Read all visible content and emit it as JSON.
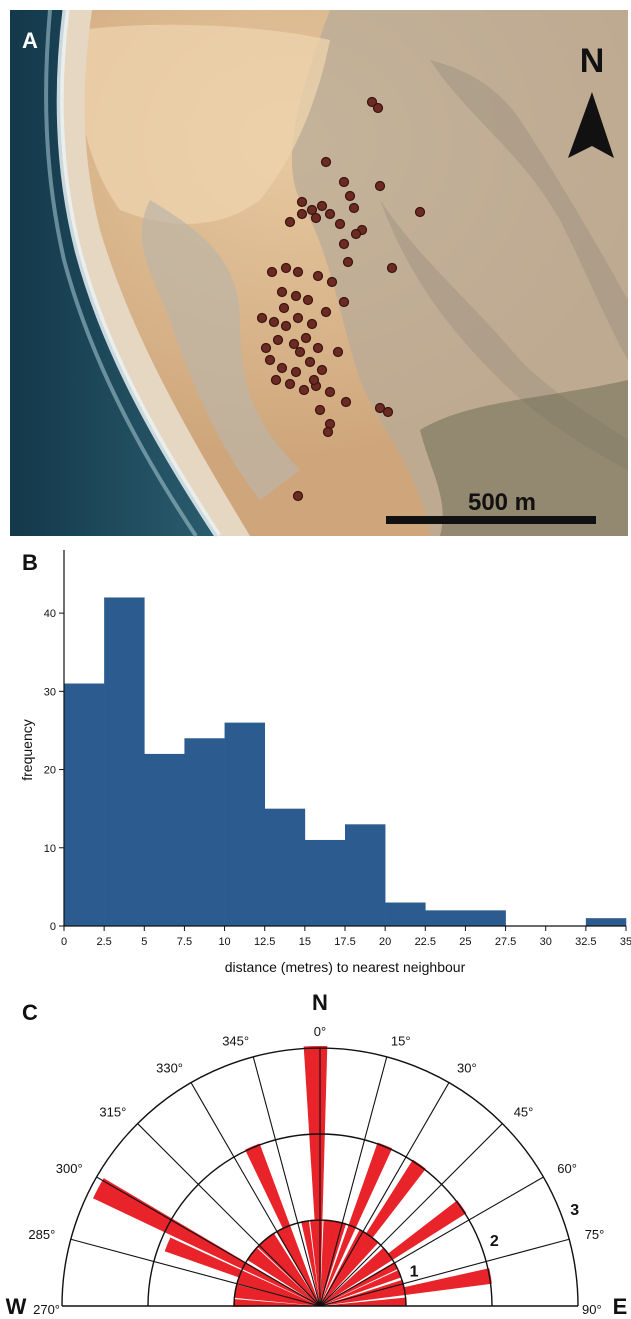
{
  "panels": {
    "a": {
      "letter": "A",
      "north_label": "N",
      "scale_label": "500 m"
    },
    "b": {
      "letter": "B"
    },
    "c": {
      "letter": "C"
    }
  },
  "colors": {
    "ocean": "#1d4a5f",
    "sand": "#d8b48a",
    "bar_blue": "#2b5b8f",
    "rose_red": "#e8232a",
    "marker": "#6b2a22"
  },
  "icons": {
    "north_arrow": "north-arrow-icon"
  },
  "chart_data": [
    {
      "type": "bar",
      "title": "",
      "xlabel": "distance (metres) to nearest neighbour",
      "ylabel": "frequency",
      "bin_edges": [
        0,
        2.5,
        5,
        7.5,
        10,
        12.5,
        15,
        17.5,
        20,
        22.5,
        25,
        27.5,
        30,
        32.5,
        35
      ],
      "x_tick_labels": [
        "0",
        "2.5",
        "5",
        "7.5",
        "10",
        "12.5",
        "15",
        "17.5",
        "20",
        "22.5",
        "25",
        "27.5",
        "30",
        "32.5",
        "35"
      ],
      "values": [
        31,
        42,
        22,
        24,
        26,
        15,
        11,
        13,
        3,
        2,
        2,
        0,
        0,
        1
      ],
      "y_ticks": [
        0,
        10,
        20,
        30,
        40
      ],
      "xlim": [
        0,
        35
      ],
      "ylim": [
        0,
        45
      ],
      "grid": false
    },
    {
      "type": "rose",
      "title": "",
      "sector_labels": [
        "270°",
        "285°",
        "300°",
        "315°",
        "330°",
        "345°",
        "0°",
        "15°",
        "30°",
        "45°",
        "60°",
        "75°",
        "90°"
      ],
      "sector_angles": [
        270,
        285,
        300,
        315,
        330,
        345,
        0,
        15,
        30,
        45,
        60,
        75,
        90
      ],
      "ring_labels": [
        "1",
        "2",
        "3"
      ],
      "ring_max": 3,
      "cardinal_labels": {
        "north": "N",
        "west": "W",
        "east": "E"
      },
      "petals": [
        {
          "angle": 272,
          "length": 1.0
        },
        {
          "angle": 278,
          "length": 1.0
        },
        {
          "angle": 282,
          "length": 1.0
        },
        {
          "angle": 288,
          "length": 1.0
        },
        {
          "angle": 292,
          "length": 1.9
        },
        {
          "angle": 298,
          "length": 2.9
        },
        {
          "angle": 305,
          "length": 1.0
        },
        {
          "angle": 310,
          "length": 1.0
        },
        {
          "angle": 316,
          "length": 1.0
        },
        {
          "angle": 320,
          "length": 1.0
        },
        {
          "angle": 325,
          "length": 1.0
        },
        {
          "angle": 332,
          "length": 1.0
        },
        {
          "angle": 337,
          "length": 2.0
        },
        {
          "angle": 350,
          "length": 1.0
        },
        {
          "angle": 356,
          "length": 1.0
        },
        {
          "angle": 359,
          "length": 3.0
        },
        {
          "angle": 5,
          "length": 1.0
        },
        {
          "angle": 10,
          "length": 1.0
        },
        {
          "angle": 15,
          "length": 1.0
        },
        {
          "angle": 22,
          "length": 2.0
        },
        {
          "angle": 30,
          "length": 1.0
        },
        {
          "angle": 35,
          "length": 2.0
        },
        {
          "angle": 40,
          "length": 1.0
        },
        {
          "angle": 50,
          "length": 1.0
        },
        {
          "angle": 55,
          "length": 2.0
        },
        {
          "angle": 62,
          "length": 1.0
        },
        {
          "angle": 68,
          "length": 1.0
        },
        {
          "angle": 75,
          "length": 1.0
        },
        {
          "angle": 80,
          "length": 2.0
        },
        {
          "angle": 87,
          "length": 1.0
        }
      ]
    }
  ]
}
